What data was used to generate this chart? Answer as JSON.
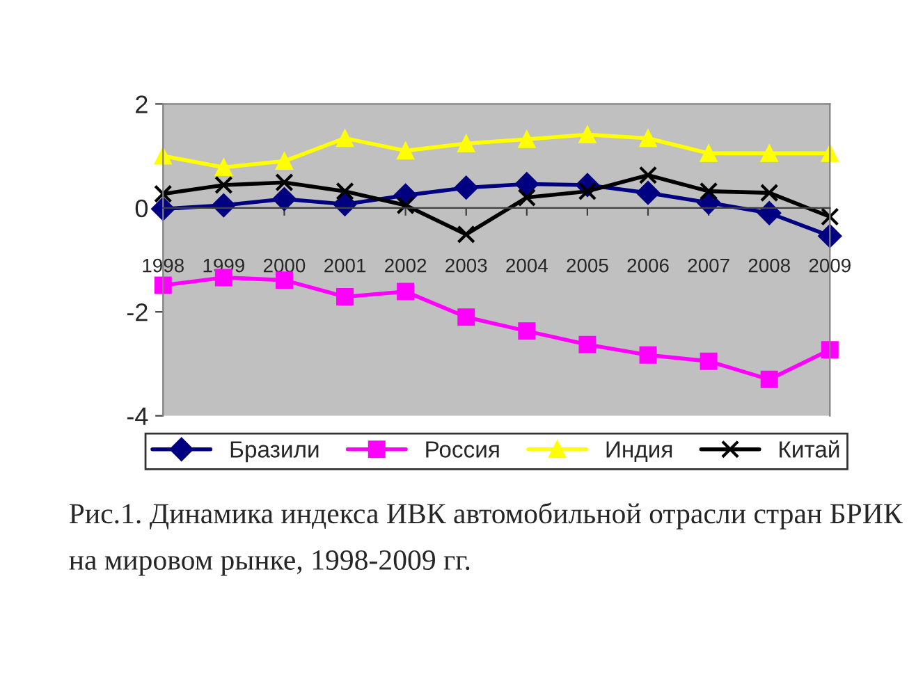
{
  "chart_data": {
    "type": "line",
    "categories": [
      "1998",
      "1999",
      "2000",
      "2001",
      "2002",
      "2003",
      "2004",
      "2005",
      "2006",
      "2007",
      "2008",
      "2009"
    ],
    "series": [
      {
        "name": "Бразили",
        "color": "#000080",
        "marker": "diamond",
        "values": [
          -0.02,
          0.05,
          0.17,
          0.07,
          0.24,
          0.39,
          0.46,
          0.44,
          0.29,
          0.1,
          -0.1,
          -0.54
        ]
      },
      {
        "name": "Россия",
        "color": "#ff00ff",
        "marker": "square",
        "values": [
          -1.49,
          -1.34,
          -1.39,
          -1.71,
          -1.61,
          -2.1,
          -2.37,
          -2.63,
          -2.83,
          -2.95,
          -3.3,
          -2.73
        ]
      },
      {
        "name": "Индия",
        "color": "#ffff00",
        "marker": "triangle",
        "values": [
          1.0,
          0.78,
          0.9,
          1.34,
          1.1,
          1.24,
          1.32,
          1.41,
          1.34,
          1.05,
          1.05,
          1.05
        ]
      },
      {
        "name": "Китай",
        "color": "#000000",
        "marker": "cross",
        "values": [
          0.27,
          0.44,
          0.49,
          0.32,
          0.05,
          -0.51,
          0.2,
          0.32,
          0.63,
          0.32,
          0.29,
          -0.17
        ]
      }
    ],
    "ylim": [
      -4,
      2
    ],
    "yticks": [
      -4,
      -2,
      0,
      2
    ],
    "legend": "bottom",
    "line_style": "solid",
    "annotations": [
      "Рис.1. Динамика индекса ИВК автомобильной отрасли стран БРИК на мировом рынке, 1998-2009 гг."
    ]
  }
}
